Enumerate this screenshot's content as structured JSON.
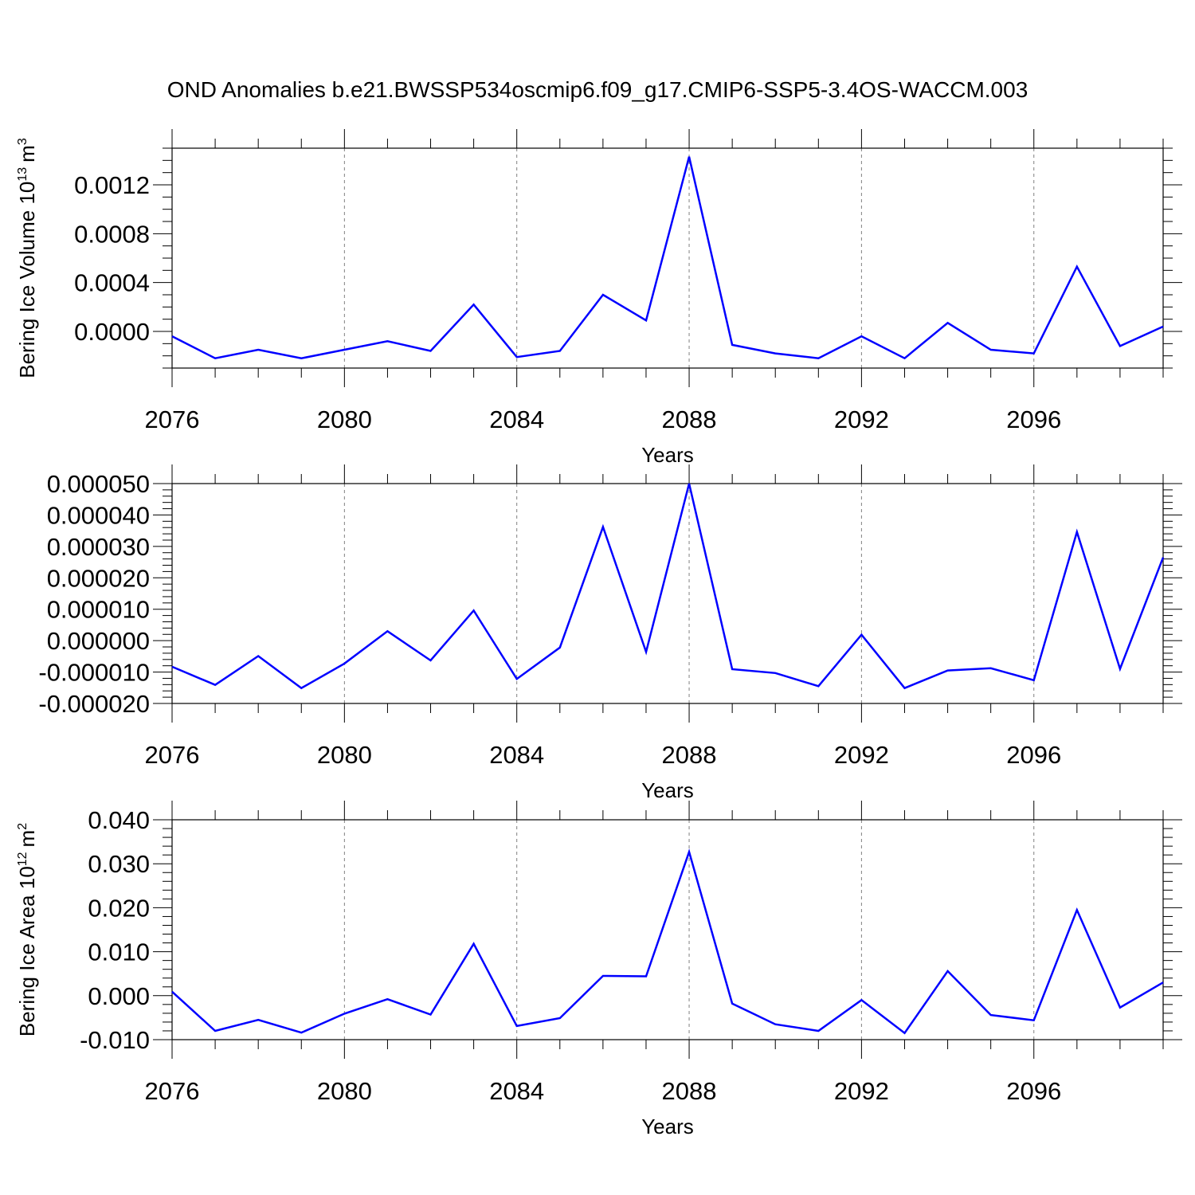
{
  "title": "OND Anomalies b.e21.BWSSP534oscmip6.f09_g17.CMIP6-SSP5-3.4OS-WACCM.003",
  "colors": {
    "line": "#0000ff",
    "axis": "#000000",
    "grid": "#808080"
  },
  "chart_data": [
    {
      "type": "line",
      "ylabel": "Bering Ice Volume 10",
      "ylabel_sup": "13",
      "ylabel_unit": "m",
      "ylabel_unit_sup": "3",
      "xlabel": "Years",
      "xlim": [
        2076,
        2099
      ],
      "ylim": [
        -0.0003,
        0.0015
      ],
      "xticks": [
        2076,
        2080,
        2084,
        2088,
        2092,
        2096
      ],
      "xtick_labels": [
        "2076",
        "2080",
        "2084",
        "2088",
        "2092",
        "2096"
      ],
      "yticks": [
        0.0,
        0.0004,
        0.0008,
        0.0012
      ],
      "ytick_labels": [
        "0.0000",
        "0.0004",
        "0.0008",
        "0.0012"
      ],
      "yminor_step": 0.0001,
      "x": [
        2076,
        2077,
        2078,
        2079,
        2080,
        2081,
        2082,
        2083,
        2084,
        2085,
        2086,
        2087,
        2088,
        2089,
        2090,
        2091,
        2092,
        2093,
        2094,
        2095,
        2096,
        2097,
        2098,
        2099
      ],
      "values": [
        -4e-05,
        -0.00022,
        -0.00015,
        -0.00022,
        -0.00015,
        -8e-05,
        -0.00016,
        0.00022,
        -0.00021,
        -0.00016,
        0.0003,
        9e-05,
        0.00143,
        -0.00011,
        -0.00018,
        -0.00022,
        -4e-05,
        -0.00022,
        7e-05,
        -0.00015,
        -0.00018,
        0.00053,
        -0.00012,
        4e-05
      ]
    },
    {
      "type": "line",
      "ylabel": "",
      "xlabel": "Years",
      "xlim": [
        2076,
        2099
      ],
      "ylim": [
        -2e-05,
        5e-05
      ],
      "xticks": [
        2076,
        2080,
        2084,
        2088,
        2092,
        2096
      ],
      "xtick_labels": [
        "2076",
        "2080",
        "2084",
        "2088",
        "2092",
        "2096"
      ],
      "yticks": [
        -2e-05,
        -1e-05,
        0.0,
        1e-05,
        2e-05,
        3e-05,
        4e-05,
        5e-05
      ],
      "ytick_labels": [
        "-0.000020",
        "-0.000010",
        "0.000000",
        "0.000010",
        "0.000020",
        "0.000030",
        "0.000040",
        "0.000050"
      ],
      "yminor_step": 2e-06,
      "x": [
        2076,
        2077,
        2078,
        2079,
        2080,
        2081,
        2082,
        2083,
        2084,
        2085,
        2086,
        2087,
        2088,
        2089,
        2090,
        2091,
        2092,
        2093,
        2094,
        2095,
        2096,
        2097,
        2098,
        2099
      ],
      "values": [
        -8.3e-06,
        -1.41e-05,
        -4.9e-06,
        -1.51e-05,
        -7.3e-06,
        3e-06,
        -6.3e-06,
        9.6e-06,
        -1.22e-05,
        -2.2e-06,
        3.62e-05,
        -3.6e-06,
        5e-05,
        -9.1e-06,
        -1.03e-05,
        -1.45e-05,
        1.9e-06,
        -1.51e-05,
        -9.5e-06,
        -8.8e-06,
        -1.26e-05,
        3.46e-05,
        -9e-06,
        2.65e-05
      ]
    },
    {
      "type": "line",
      "ylabel": "Bering Ice Area 10",
      "ylabel_sup": "12",
      "ylabel_unit": "m",
      "ylabel_unit_sup": "2",
      "xlabel": "Years",
      "xlim": [
        2076,
        2099
      ],
      "ylim": [
        -0.01,
        0.04
      ],
      "xticks": [
        2076,
        2080,
        2084,
        2088,
        2092,
        2096
      ],
      "xtick_labels": [
        "2076",
        "2080",
        "2084",
        "2088",
        "2092",
        "2096"
      ],
      "yticks": [
        -0.01,
        0.0,
        0.01,
        0.02,
        0.03,
        0.04
      ],
      "ytick_labels": [
        "-0.010",
        "0.000",
        "0.010",
        "0.020",
        "0.030",
        "0.040"
      ],
      "yminor_step": 0.002,
      "x": [
        2076,
        2077,
        2078,
        2079,
        2080,
        2081,
        2082,
        2083,
        2084,
        2085,
        2086,
        2087,
        2088,
        2089,
        2090,
        2091,
        2092,
        2093,
        2094,
        2095,
        2096,
        2097,
        2098,
        2099
      ],
      "values": [
        0.0009,
        -0.008,
        -0.0055,
        -0.0084,
        -0.0041,
        -0.0008,
        -0.0043,
        0.0118,
        -0.0069,
        -0.0051,
        0.0045,
        0.0044,
        0.0327,
        -0.0018,
        -0.0065,
        -0.008,
        -0.001,
        -0.0085,
        0.0056,
        -0.0044,
        -0.0056,
        0.0195,
        -0.0027,
        0.003
      ]
    }
  ]
}
